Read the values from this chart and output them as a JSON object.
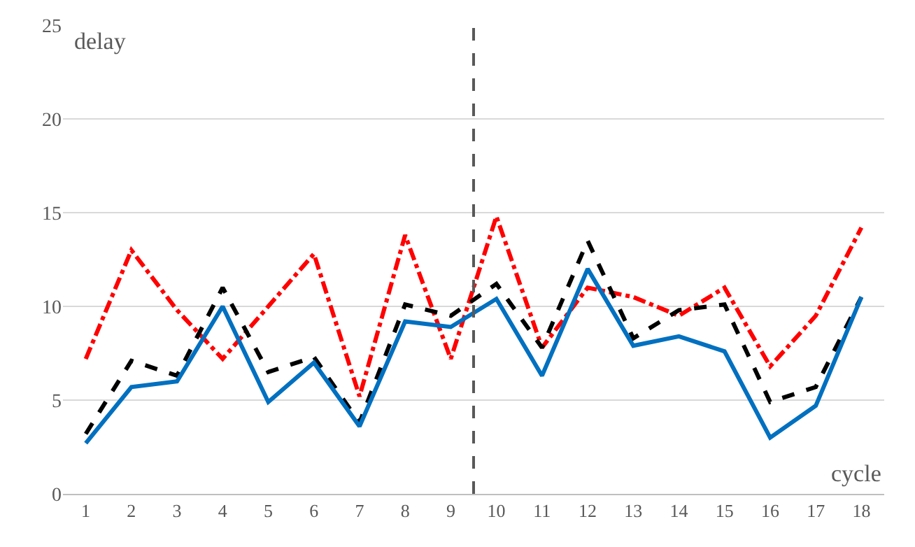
{
  "chart_data": {
    "type": "line",
    "xlabel": "cycle",
    "ylabel": "delay",
    "x": [
      1,
      2,
      3,
      4,
      5,
      6,
      7,
      8,
      9,
      10,
      11,
      12,
      13,
      14,
      15,
      16,
      17,
      18
    ],
    "xlim": [
      0.5,
      18.5
    ],
    "xticks": [
      1,
      2,
      3,
      4,
      5,
      6,
      7,
      8,
      9,
      10,
      11,
      12,
      13,
      14,
      15,
      16,
      17,
      18
    ],
    "ylim": [
      0,
      25
    ],
    "yticks": [
      0,
      5,
      10,
      15,
      20,
      25
    ],
    "grid": "y",
    "marker": "none",
    "series": [
      {
        "color": "#ff0000",
        "line_style": "dashdot",
        "values": [
          7.2,
          13,
          9.8,
          7.2,
          10,
          12.8,
          5.2,
          13.8,
          7.2,
          14.8,
          7.8,
          11,
          10.5,
          9.5,
          11,
          6.8,
          9.5,
          14.2
        ]
      },
      {
        "color": "#000000",
        "line_style": "dashed",
        "values": [
          3.2,
          7.1,
          6.3,
          11,
          6.5,
          7.3,
          3.8,
          10.1,
          9.5,
          11.2,
          7.8,
          13.5,
          8.3,
          9.8,
          10.1,
          4.9,
          5.7,
          10.5
        ]
      },
      {
        "color": "#0070c0",
        "line_style": "solid",
        "values": [
          2.7,
          5.7,
          6,
          10,
          4.9,
          7,
          3.6,
          9.2,
          8.9,
          10.4,
          6.3,
          12,
          7.9,
          8.4,
          7.6,
          3,
          4.7,
          10.5
        ]
      }
    ],
    "ref_lines": [
      {
        "axis": "x",
        "value": 9.5,
        "color": "#595959",
        "line_style": "dashed"
      }
    ]
  }
}
